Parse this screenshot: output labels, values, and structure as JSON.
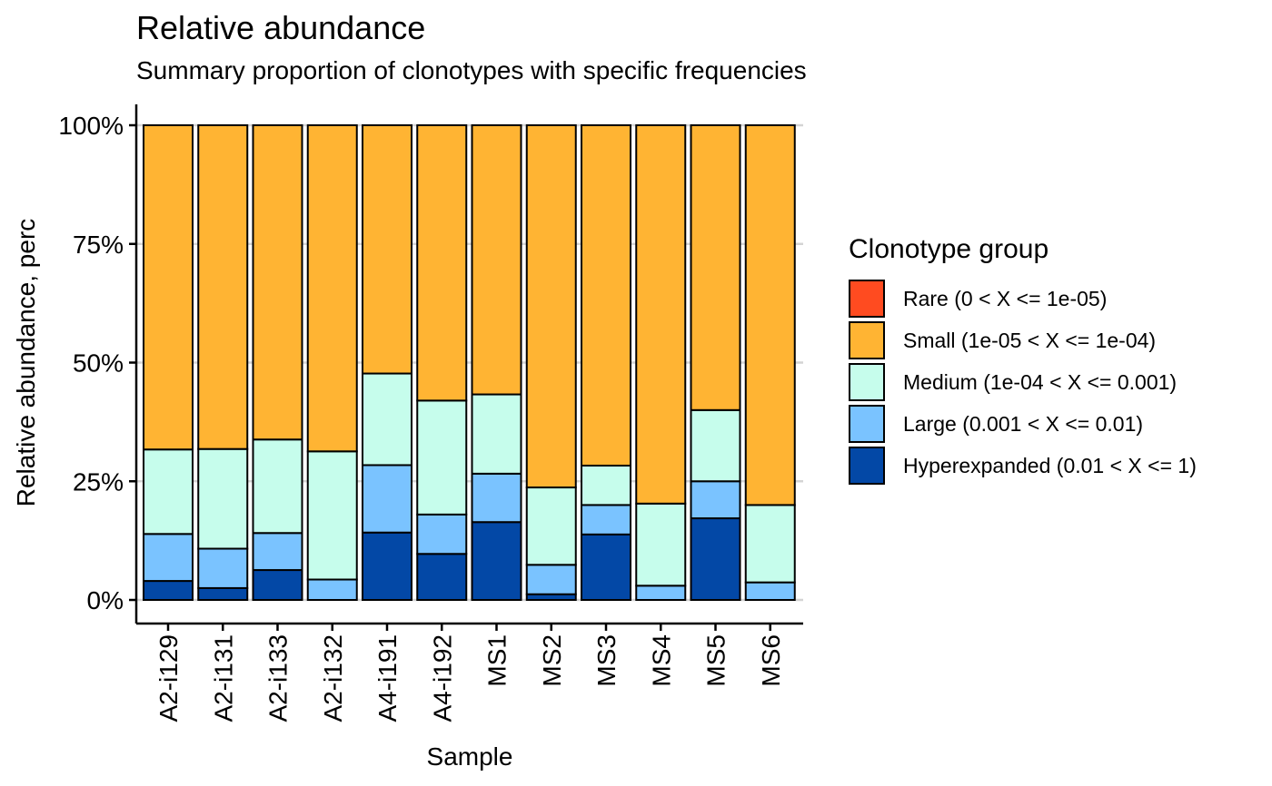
{
  "chart_data": {
    "type": "bar",
    "stacked": true,
    "title": "Relative abundance",
    "subtitle": "Summary proportion of clonotypes with specific frequencies",
    "xlabel": "Sample",
    "ylabel": "Relative abundance, perc",
    "ylim": [
      0,
      1
    ],
    "yticks": [
      "0%",
      "25%",
      "50%",
      "75%",
      "100%"
    ],
    "ytick_values": [
      0,
      0.25,
      0.5,
      0.75,
      1
    ],
    "grid": "horizontal",
    "legend_position": "right",
    "legend_title": "Clonotype group",
    "categories": [
      "A2-i129",
      "A2-i131",
      "A2-i133",
      "A2-i132",
      "A4-i191",
      "A4-i192",
      "MS1",
      "MS2",
      "MS3",
      "MS4",
      "MS5",
      "MS6"
    ],
    "series": [
      {
        "name": "Rare (0 < X <= 1e-05)",
        "color": "#FF4B20",
        "values": [
          0,
          0,
          0,
          0,
          0,
          0,
          0,
          0,
          0,
          0,
          0,
          0
        ]
      },
      {
        "name": "Small (1e-05 < X <= 1e-04)",
        "color": "#FFB433",
        "values": [
          0.683,
          0.682,
          0.662,
          0.687,
          0.523,
          0.58,
          0.567,
          0.763,
          0.717,
          0.797,
          0.6,
          0.8
        ]
      },
      {
        "name": "Medium (1e-04 < X <= 0.001)",
        "color": "#C6FDEC",
        "values": [
          0.178,
          0.21,
          0.197,
          0.27,
          0.193,
          0.24,
          0.167,
          0.163,
          0.083,
          0.173,
          0.15,
          0.163
        ]
      },
      {
        "name": "Large (0.001 < X <= 0.01)",
        "color": "#7AC3FF",
        "values": [
          0.099,
          0.083,
          0.078,
          0.043,
          0.142,
          0.083,
          0.102,
          0.062,
          0.062,
          0.03,
          0.078,
          0.037
        ]
      },
      {
        "name": "Hyperexpanded (0.01 < X <= 1)",
        "color": "#0348A6",
        "values": [
          0.04,
          0.025,
          0.063,
          0,
          0.142,
          0.097,
          0.164,
          0.012,
          0.138,
          0,
          0.172,
          0
        ]
      }
    ]
  }
}
